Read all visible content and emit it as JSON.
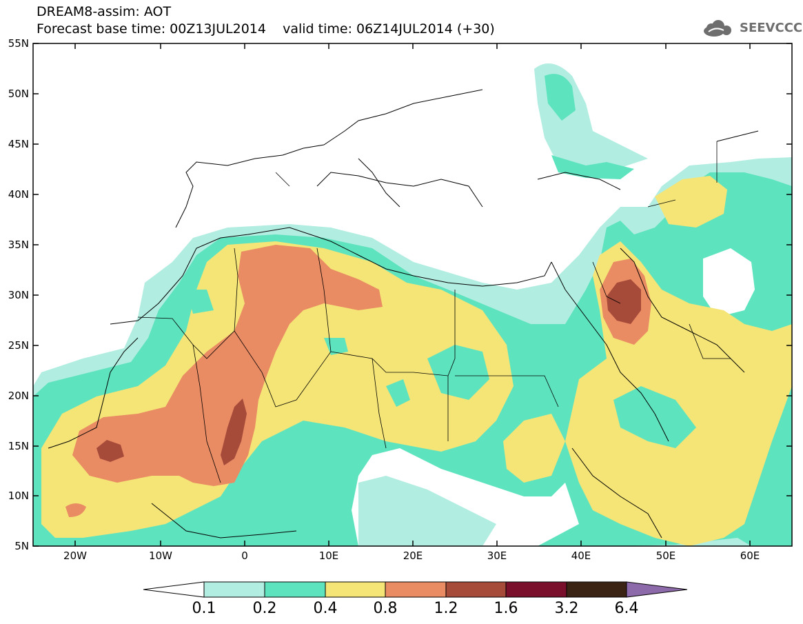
{
  "header": {
    "title_line1": "DREAM8-assim: AOT",
    "title_line2": "Forecast base time: 00Z13JUL2014    valid time: 06Z14JUL2014 (+30)",
    "logo_text": "SEEVCCC",
    "logo_icon": "cloud-icon"
  },
  "map": {
    "type": "filled-contour-map",
    "variable": "AOT",
    "lat_range": [
      5,
      55
    ],
    "lon_range": [
      -25,
      65
    ],
    "lat_labels": [
      "55N",
      "50N",
      "45N",
      "40N",
      "35N",
      "30N",
      "25N",
      "20N",
      "15N",
      "10N",
      "5N"
    ],
    "lon_labels": [
      "20W",
      "10W",
      "0",
      "10E",
      "20E",
      "30E",
      "40E",
      "50E",
      "60E"
    ]
  },
  "colorbar": {
    "labels": [
      "0.1",
      "0.2",
      "0.4",
      "0.8",
      "1.2",
      "1.6",
      "3.2",
      "6.4"
    ],
    "colors": [
      "#ffffff",
      "#b2ede1",
      "#5ee3bf",
      "#f5e576",
      "#e98b63",
      "#a64b3a",
      "#7a0f2c",
      "#3c2414",
      "#8d6aaa"
    ]
  }
}
